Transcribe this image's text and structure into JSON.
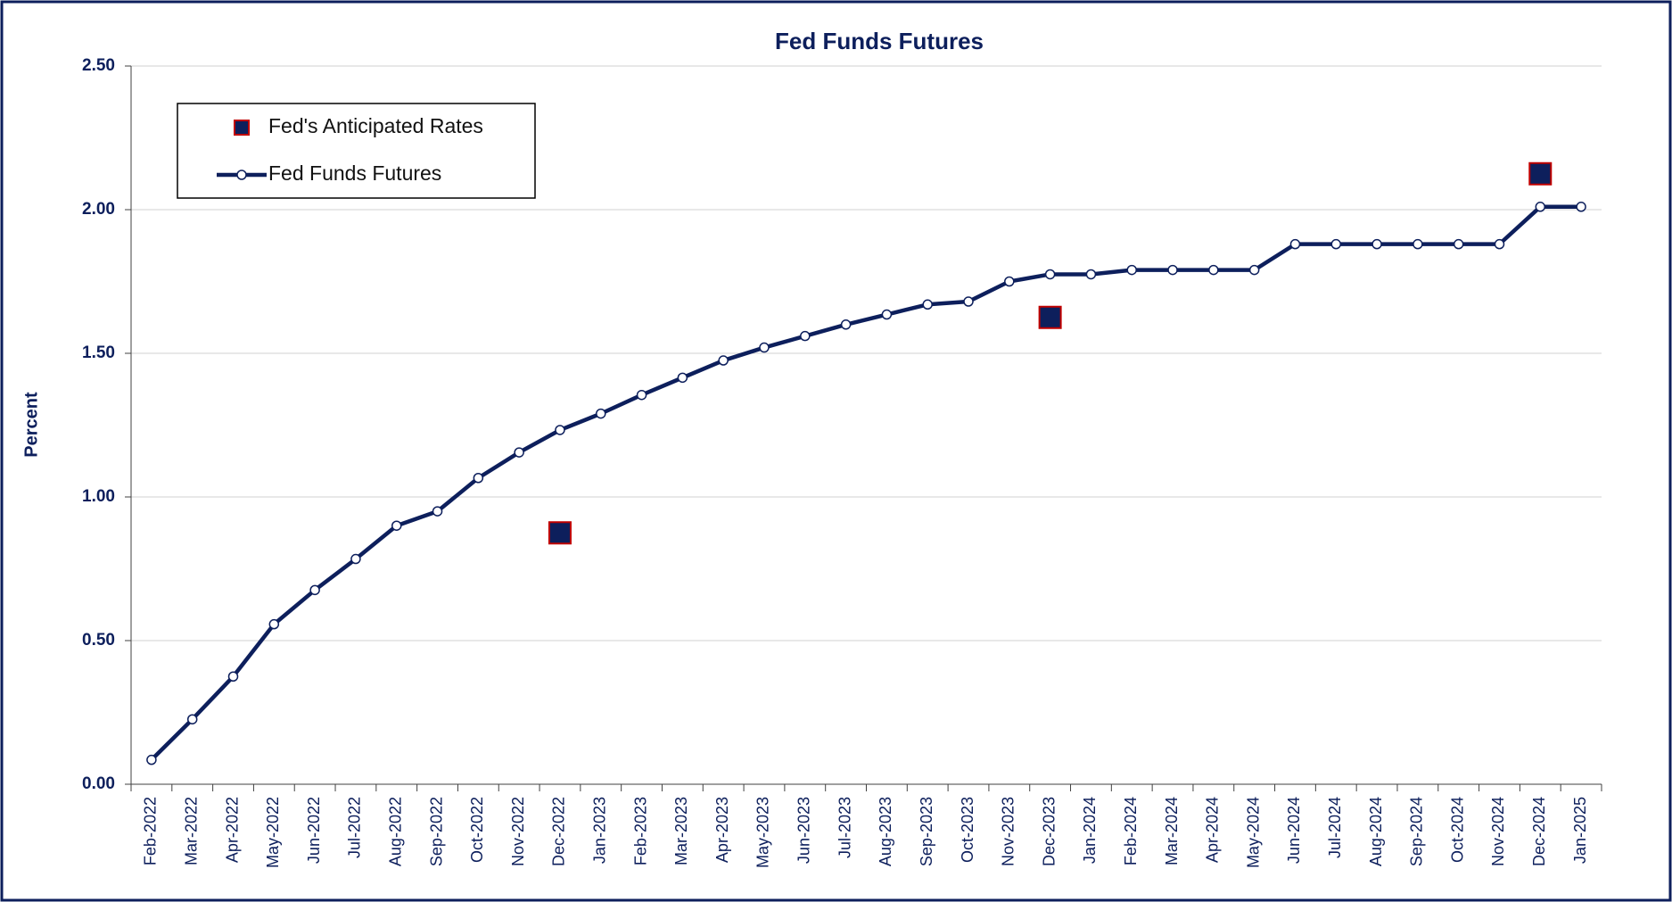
{
  "chart_data": {
    "type": "line",
    "title": "Fed Funds Futures",
    "y_label": "Percent",
    "categories": [
      "Feb-2022",
      "Mar-2022",
      "Apr-2022",
      "May-2022",
      "Jun-2022",
      "Jul-2022",
      "Aug-2022",
      "Sep-2022",
      "Oct-2022",
      "Nov-2022",
      "Dec-2022",
      "Jan-2023",
      "Feb-2023",
      "Mar-2023",
      "Apr-2023",
      "May-2023",
      "Jun-2023",
      "Jul-2023",
      "Aug-2023",
      "Sep-2023",
      "Oct-2023",
      "Nov-2023",
      "Dec-2023",
      "Jan-2024",
      "Feb-2024",
      "Mar-2024",
      "Apr-2024",
      "May-2024",
      "Jun-2024",
      "Jul-2024",
      "Aug-2024",
      "Sep-2024",
      "Oct-2024",
      "Nov-2024",
      "Dec-2024",
      "Jan-2025"
    ],
    "series": [
      {
        "name": "Fed's Anticipated Rates",
        "type": "scatter",
        "color": "#0d1f5c",
        "edge_color": "#c00000",
        "values": [
          null,
          null,
          null,
          null,
          null,
          null,
          null,
          null,
          null,
          null,
          0.875,
          null,
          null,
          null,
          null,
          null,
          null,
          null,
          null,
          null,
          null,
          null,
          1.625,
          null,
          null,
          null,
          null,
          null,
          null,
          null,
          null,
          null,
          null,
          null,
          2.125,
          null
        ]
      },
      {
        "name": "Fed Funds Futures",
        "type": "line",
        "color": "#0d1f5c",
        "values": [
          0.085,
          0.226,
          0.375,
          0.557,
          0.676,
          0.784,
          0.9,
          0.95,
          1.066,
          1.155,
          1.233,
          1.29,
          1.355,
          1.415,
          1.475,
          1.52,
          1.56,
          1.6,
          1.635,
          1.67,
          1.68,
          1.75,
          1.775,
          1.775,
          1.79,
          1.79,
          1.79,
          1.79,
          1.88,
          1.88,
          1.88,
          1.88,
          1.88,
          1.88,
          2.01,
          2.01
        ]
      }
    ],
    "ylim": [
      0,
      2.5
    ],
    "yticks": [
      {
        "value": 0,
        "label": "0.00"
      },
      {
        "value": 0.5,
        "label": "0.50"
      },
      {
        "value": 1,
        "label": "1.00"
      },
      {
        "value": 1.5,
        "label": "1.50"
      },
      {
        "value": 2,
        "label": "2.00"
      },
      {
        "value": 2.5,
        "label": "2.50"
      }
    ],
    "grid": true,
    "legend": "upper left"
  }
}
